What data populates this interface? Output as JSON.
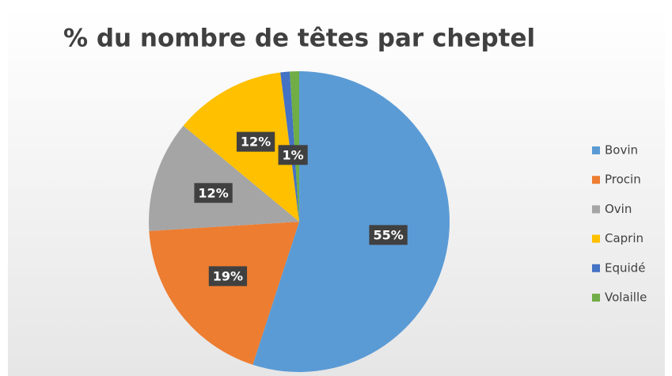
{
  "chart_data": {
    "type": "pie",
    "title": "% du nombre de têtes par cheptel",
    "categories": [
      "Bovin",
      "Procin",
      "Ovin",
      "Caprin",
      "Equidé",
      "Volaille"
    ],
    "values": [
      55,
      19,
      12,
      12,
      1,
      1
    ],
    "value_labels": [
      "55%",
      "19%",
      "12%",
      "12%",
      "1%",
      null
    ],
    "colors": [
      "#5b9bd5",
      "#ed7d31",
      "#a5a5a5",
      "#ffc000",
      "#4472c4",
      "#70ad47"
    ],
    "legend": "right"
  }
}
